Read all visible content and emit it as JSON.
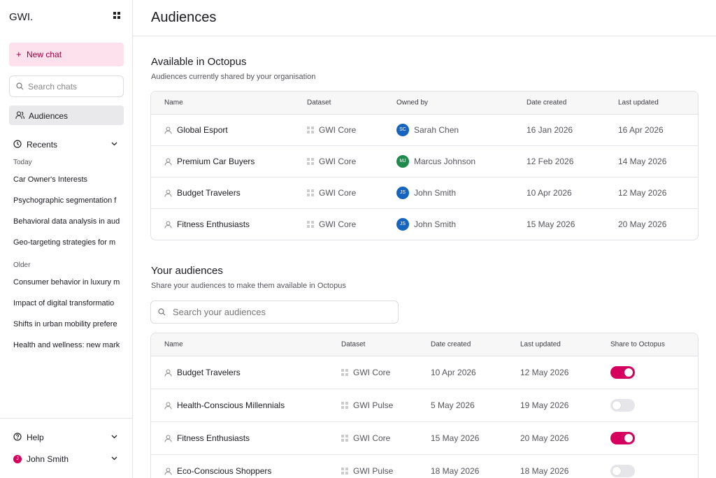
{
  "sidebar": {
    "logo": "GWI.",
    "new_chat": "New chat",
    "search_placeholder": "Search chats",
    "nav": "Audiences",
    "recents": "Recents",
    "groups": [
      {
        "label": "Today",
        "items": [
          "Car Owner's Interests",
          "Psychographic segmentation f",
          "Behavioral data analysis in aud",
          "Geo-targeting strategies for m"
        ]
      },
      {
        "label": "Older",
        "items": [
          "Consumer behavior in luxury m",
          "Impact of digital transformatio",
          "Shifts in urban mobility prefere",
          "Health and wellness: new mark"
        ]
      }
    ],
    "help": "Help",
    "user": {
      "initial": "J",
      "name": "John Smith",
      "color": "#d6005f"
    }
  },
  "header": {
    "title": "Audiences"
  },
  "shared_section": {
    "title": "Available in Octopus",
    "subtitle": "Audiences currently shared by your organisation",
    "columns": [
      "Name",
      "Dataset",
      "Owned by",
      "Date created",
      "Last updated"
    ],
    "rows": [
      {
        "name": "Global Esport",
        "dataset": "GWI Core",
        "owner": {
          "initials": "SC",
          "name": "Sarah Chen",
          "color": "#1565c0"
        },
        "created": "16 Jan 2026",
        "updated": "16 Apr 2026"
      },
      {
        "name": "Premium Car Buyers",
        "dataset": "GWI Core",
        "owner": {
          "initials": "MJ",
          "name": "Marcus Johnson",
          "color": "#1e8a4c"
        },
        "created": "12 Feb 2026",
        "updated": "14 May 2026"
      },
      {
        "name": "Budget Travelers",
        "dataset": "GWI Core",
        "owner": {
          "initials": "JS",
          "name": "John Smith",
          "color": "#1565c0"
        },
        "created": "10 Apr 2026",
        "updated": "12 May 2026"
      },
      {
        "name": "Fitness Enthusiasts",
        "dataset": "GWI Core",
        "owner": {
          "initials": "JS",
          "name": "John Smith",
          "color": "#1565c0"
        },
        "created": "15 May 2026",
        "updated": "20 May 2026"
      }
    ]
  },
  "own_section": {
    "title": "Your audiences",
    "subtitle": "Share your audiences to make them available in Octopus",
    "search_placeholder": "Search your audiences",
    "columns": [
      "Name",
      "Dataset",
      "Date created",
      "Last updated",
      "Share to Octopus"
    ],
    "rows": [
      {
        "name": "Budget Travelers",
        "dataset": "GWI Core",
        "created": "10 Apr 2026",
        "updated": "12 May 2026",
        "shared": true
      },
      {
        "name": "Health-Conscious Millennials",
        "dataset": "GWI Pulse",
        "created": "5 May 2026",
        "updated": "19 May 2026",
        "shared": false
      },
      {
        "name": "Fitness Enthusiasts",
        "dataset": "GWI Core",
        "created": "15 May 2026",
        "updated": "20 May 2026",
        "shared": true
      },
      {
        "name": "Eco-Conscious Shoppers",
        "dataset": "GWI Pulse",
        "created": "18 May 2026",
        "updated": "18 May 2026",
        "shared": false
      }
    ]
  }
}
